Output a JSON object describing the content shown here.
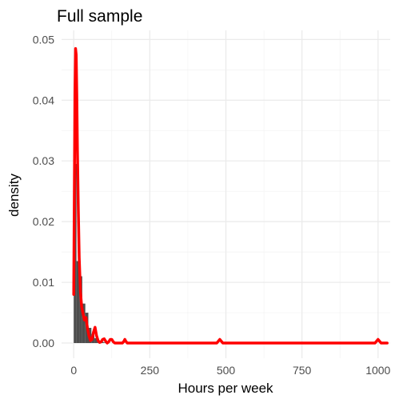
{
  "chart_data": {
    "type": "histogram",
    "title": "Full sample",
    "xlabel": "Hours per week",
    "ylabel": "density",
    "xlim": [
      -40,
      1040
    ],
    "ylim": [
      -0.0025,
      0.0515
    ],
    "x_ticks": [
      0,
      250,
      500,
      750,
      1000
    ],
    "x_tick_labels": [
      "0",
      "250",
      "500",
      "750",
      "1000"
    ],
    "y_ticks": [
      0.0,
      0.01,
      0.02,
      0.03,
      0.04,
      0.05
    ],
    "y_tick_labels": [
      "0.00",
      "0.01",
      "0.02",
      "0.03",
      "0.04",
      "0.05"
    ],
    "grid": true,
    "histogram": {
      "color": "#4d4d4d",
      "bins": [
        {
          "x0": 0,
          "x1": 9,
          "density": 0.0295
        },
        {
          "x0": 9,
          "x1": 18,
          "density": 0.0135
        },
        {
          "x0": 18,
          "x1": 28,
          "density": 0.011
        },
        {
          "x0": 28,
          "x1": 38,
          "density": 0.0065
        },
        {
          "x0": 38,
          "x1": 48,
          "density": 0.005
        },
        {
          "x0": 48,
          "x1": 58,
          "density": 0.0025
        },
        {
          "x0": 58,
          "x1": 68,
          "density": 0.0015
        },
        {
          "x0": 68,
          "x1": 78,
          "density": 0.0008
        },
        {
          "x0": 78,
          "x1": 88,
          "density": 0.0004
        },
        {
          "x0": 88,
          "x1": 98,
          "density": 0.0002
        },
        {
          "x0": 98,
          "x1": 108,
          "density": 0.0001
        }
      ]
    },
    "density_curve": {
      "color": "#ff0000",
      "points": [
        [
          0,
          0.008
        ],
        [
          2,
          0.025
        ],
        [
          4,
          0.041
        ],
        [
          6,
          0.0485
        ],
        [
          8,
          0.0475
        ],
        [
          10,
          0.041
        ],
        [
          12,
          0.032
        ],
        [
          15,
          0.022
        ],
        [
          18,
          0.014
        ],
        [
          22,
          0.0085
        ],
        [
          26,
          0.006
        ],
        [
          30,
          0.005
        ],
        [
          35,
          0.0038
        ],
        [
          40,
          0.0042
        ],
        [
          45,
          0.0025
        ],
        [
          50,
          0.0012
        ],
        [
          55,
          0.0004
        ],
        [
          60,
          0.0006
        ],
        [
          65,
          0.0018
        ],
        [
          70,
          0.0026
        ],
        [
          75,
          0.0012
        ],
        [
          80,
          0.0004
        ],
        [
          85,
          0.0001
        ],
        [
          90,
          0.0002
        ],
        [
          95,
          0.0006
        ],
        [
          100,
          0.0007
        ],
        [
          105,
          0.0003
        ],
        [
          110,
          0.0
        ],
        [
          115,
          0.0002
        ],
        [
          120,
          0.0006
        ],
        [
          125,
          0.0006
        ],
        [
          130,
          0.0002
        ],
        [
          135,
          0.0
        ],
        [
          160,
          0.0
        ],
        [
          165,
          0.0003
        ],
        [
          168,
          0.0006
        ],
        [
          171,
          0.0003
        ],
        [
          176,
          0.0
        ],
        [
          470,
          0.0
        ],
        [
          475,
          0.0003
        ],
        [
          480,
          0.0006
        ],
        [
          485,
          0.0003
        ],
        [
          490,
          0.0
        ],
        [
          990,
          0.0
        ],
        [
          995,
          0.0003
        ],
        [
          1000,
          0.0006
        ],
        [
          1005,
          0.0003
        ],
        [
          1010,
          0.0
        ],
        [
          1030,
          0.0
        ]
      ]
    }
  }
}
